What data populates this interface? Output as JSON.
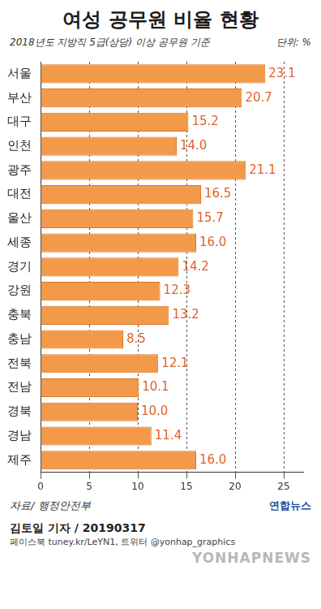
{
  "chart_data": {
    "type": "bar",
    "title": "여성 공무원 비율 현황",
    "subtitle": "2018년도 지방직 5급(상당) 이상 공무원 기준",
    "unit_note": "단위: %",
    "source": "자료/ 행정안전부",
    "logo": "연합뉴스",
    "byline": "김토일 기자 / 20190317",
    "social": "페이스북 tuney.kr/LeYN1, 트위터 @yonhap_graphics",
    "watermark": "YONHAPNEWS",
    "orientation": "horizontal",
    "categories": [
      "서울",
      "부산",
      "대구",
      "인천",
      "광주",
      "대전",
      "울산",
      "세종",
      "경기",
      "강원",
      "충북",
      "충남",
      "전북",
      "전남",
      "경북",
      "경남",
      "제주"
    ],
    "values": [
      23.1,
      20.7,
      15.2,
      14.0,
      21.1,
      16.5,
      15.7,
      16.0,
      14.2,
      12.3,
      13.2,
      8.5,
      12.1,
      10.1,
      10.0,
      11.4,
      16.0
    ],
    "value_labels": [
      "23.1",
      "20.7",
      "15.2",
      "14.0",
      "21.1",
      "16.5",
      "15.7",
      "16.0",
      "14.2",
      "12.3",
      "13.2",
      "8.5",
      "12.1",
      "10.1",
      "10.0",
      "11.4",
      "16.0"
    ],
    "color": "#f39a4a",
    "xlim": [
      0,
      27
    ],
    "xticks": [
      0,
      5,
      10,
      15,
      20,
      25
    ],
    "grid": true,
    "data_labels": true
  }
}
